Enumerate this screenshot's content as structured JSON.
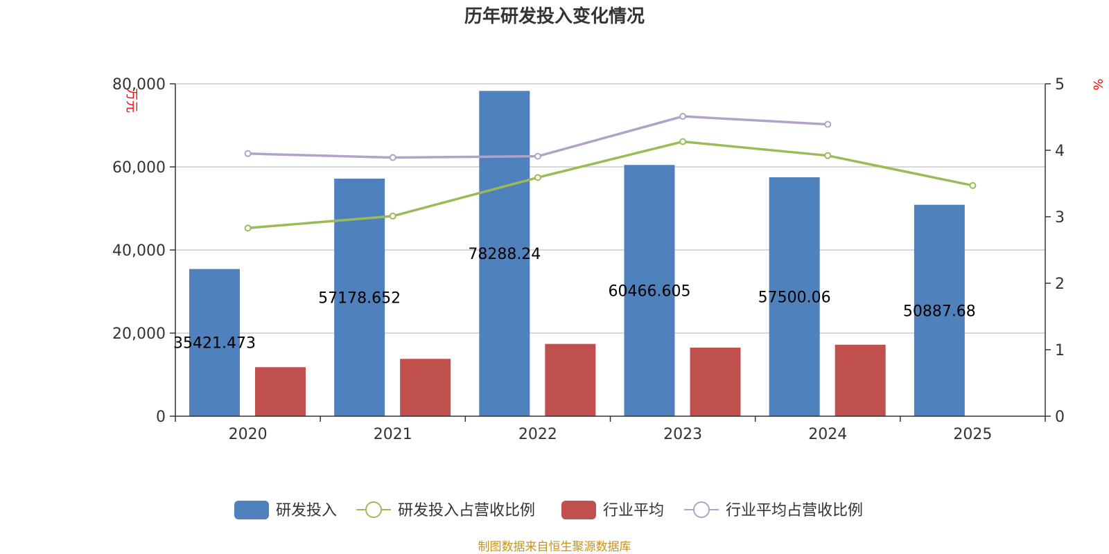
{
  "chart_data": {
    "type": "bar",
    "title": "历年研发投入变化情况",
    "categories": [
      "2020",
      "2021",
      "2022",
      "2023",
      "2024",
      "2025"
    ],
    "y_left": {
      "unit": "万元",
      "ylim": [
        0,
        80000
      ],
      "ticks": [
        "0",
        "20,000",
        "40,000",
        "60,000",
        "80,000"
      ],
      "tick_values": [
        0,
        20000,
        40000,
        60000,
        80000
      ]
    },
    "y_right": {
      "unit": "%",
      "ylim": [
        0,
        5
      ],
      "ticks": [
        "0",
        "1",
        "2",
        "3",
        "4",
        "5"
      ],
      "tick_values": [
        0,
        1,
        2,
        3,
        4,
        5
      ]
    },
    "series": [
      {
        "name": "研发投入",
        "kind": "bar",
        "axis": "left",
        "color": "#4f81bd",
        "values": [
          35421.473,
          57178.652,
          78288.24,
          60466.605,
          57500.06,
          50887.68
        ],
        "labels": [
          "35421.473",
          "57178.652",
          "78288.24",
          "60466.605",
          "57500.06",
          "50887.68"
        ]
      },
      {
        "name": "研发投入占营收比例",
        "kind": "line",
        "axis": "right",
        "color": "#9bbb59",
        "values": [
          2.83,
          3.01,
          3.59,
          4.13,
          3.92,
          3.47
        ]
      },
      {
        "name": "行业平均",
        "kind": "bar",
        "axis": "left",
        "color": "#c0504d",
        "values": [
          11800,
          13800,
          17400,
          16500,
          17200,
          null
        ]
      },
      {
        "name": "行业平均占营收比例",
        "kind": "line",
        "axis": "right",
        "color": "#b3a2c7",
        "values": [
          3.95,
          3.89,
          3.91,
          4.51,
          4.39,
          null
        ]
      }
    ],
    "legend_position": "bottom",
    "grid": true
  },
  "source": "制图数据来自恒生聚源数据库"
}
